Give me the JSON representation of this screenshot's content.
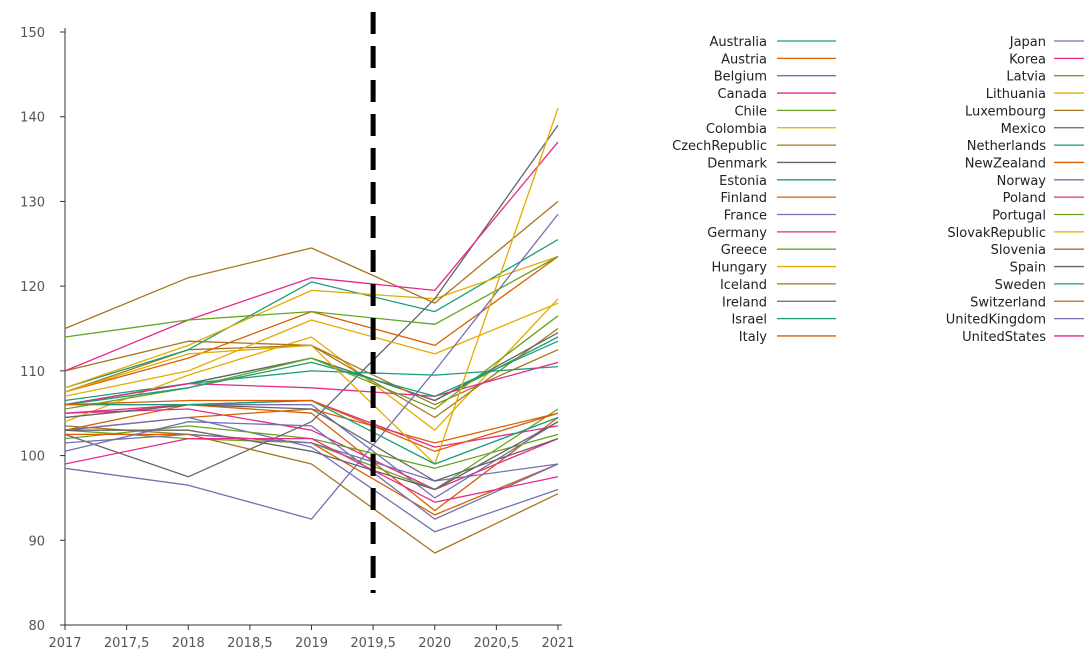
{
  "chart_data": {
    "type": "line",
    "title": "",
    "xlabel": "",
    "ylabel": "",
    "xlim": [
      2017,
      2021
    ],
    "ylim": [
      80,
      150
    ],
    "x_ticks": [
      "2017",
      "2017,5",
      "2018",
      "2018,5",
      "2019",
      "2019,5",
      "2020",
      "2020,5",
      "2021"
    ],
    "y_ticks": [
      "80",
      "90",
      "100",
      "110",
      "120",
      "130",
      "140",
      "150"
    ],
    "grid": false,
    "legend_position": "right",
    "vertical_marker": {
      "x": 2019.5,
      "style": "dashed",
      "color": "#000000"
    },
    "x": [
      2017,
      2018,
      2019,
      2020,
      2021
    ],
    "series": [
      {
        "name": "Australia",
        "color": "#1b9e77",
        "values": [
          106.5,
          108.5,
          111.5,
          106.5,
          114.0
        ]
      },
      {
        "name": "Austria",
        "color": "#d95f02",
        "values": [
          103.0,
          106.0,
          105.0,
          93.5,
          104.5
        ]
      },
      {
        "name": "Belgium",
        "color": "#7570b3",
        "values": [
          104.5,
          106.0,
          106.0,
          95.0,
          104.0
        ]
      },
      {
        "name": "Canada",
        "color": "#e7298a",
        "values": [
          105.0,
          105.5,
          103.0,
          96.0,
          102.0
        ]
      },
      {
        "name": "Chile",
        "color": "#66a61e",
        "values": [
          103.0,
          102.0,
          101.5,
          96.0,
          105.5
        ]
      },
      {
        "name": "Colombia",
        "color": "#e6ab02",
        "values": [
          104.0,
          109.5,
          114.0,
          103.0,
          118.5
        ]
      },
      {
        "name": "CzechRepublic",
        "color": "#a6761d",
        "values": [
          107.5,
          112.5,
          113.0,
          104.5,
          115.0
        ]
      },
      {
        "name": "Denmark",
        "color": "#666666",
        "values": [
          106.0,
          108.5,
          111.5,
          106.5,
          114.5
        ]
      },
      {
        "name": "Estonia",
        "color": "#1b9e77",
        "values": [
          108.0,
          112.5,
          120.5,
          117.0,
          125.5
        ]
      },
      {
        "name": "Finland",
        "color": "#d95f02",
        "values": [
          103.0,
          104.5,
          105.5,
          101.5,
          105.0
        ]
      },
      {
        "name": "France",
        "color": "#7570b3",
        "values": [
          103.0,
          104.5,
          101.0,
          91.0,
          96.0
        ]
      },
      {
        "name": "Germany",
        "color": "#e7298a",
        "values": [
          105.0,
          106.0,
          106.5,
          101.0,
          103.5
        ]
      },
      {
        "name": "Greece",
        "color": "#66a61e",
        "values": [
          102.0,
          103.5,
          102.0,
          98.5,
          102.5
        ]
      },
      {
        "name": "Hungary",
        "color": "#e6ab02",
        "values": [
          108.0,
          113.0,
          119.5,
          118.5,
          123.5
        ]
      },
      {
        "name": "Iceland",
        "color": "#a6761d",
        "values": [
          110.0,
          113.5,
          113.0,
          106.0,
          112.5
        ]
      },
      {
        "name": "Ireland",
        "color": "#666666",
        "values": [
          102.5,
          97.5,
          104.0,
          118.5,
          139.0
        ]
      },
      {
        "name": "Israel",
        "color": "#1b9e77",
        "values": [
          106.0,
          108.5,
          110.0,
          109.5,
          110.5
        ]
      },
      {
        "name": "Italy",
        "color": "#d95f02",
        "values": [
          102.5,
          102.5,
          101.5,
          93.0,
          99.0
        ]
      },
      {
        "name": "Japan",
        "color": "#7570b3",
        "values": [
          101.5,
          102.5,
          101.5,
          97.0,
          99.0
        ]
      },
      {
        "name": "Korea",
        "color": "#e7298a",
        "values": [
          106.0,
          108.5,
          108.0,
          107.0,
          111.0
        ]
      },
      {
        "name": "Latvia",
        "color": "#66a61e",
        "values": [
          105.5,
          108.0,
          111.5,
          105.5,
          116.5
        ]
      },
      {
        "name": "Lithuania",
        "color": "#e6ab02",
        "values": [
          107.0,
          110.0,
          116.0,
          112.0,
          118.0
        ]
      },
      {
        "name": "Luxembourg",
        "color": "#a6761d",
        "values": [
          115.0,
          121.0,
          124.5,
          118.0,
          130.0
        ]
      },
      {
        "name": "Mexico",
        "color": "#666666",
        "values": [
          104.5,
          106.0,
          105.5,
          97.0,
          102.0
        ]
      },
      {
        "name": "Netherlands",
        "color": "#1b9e77",
        "values": [
          106.0,
          108.0,
          111.0,
          107.0,
          113.5
        ]
      },
      {
        "name": "NewZealand",
        "color": "#d95f02",
        "values": [
          107.5,
          111.5,
          117.0,
          113.0,
          123.5
        ]
      },
      {
        "name": "Norway",
        "color": "#7570b3",
        "values": [
          98.5,
          96.5,
          92.5,
          110.0,
          128.5
        ]
      },
      {
        "name": "Poland",
        "color": "#e7298a",
        "values": [
          110.0,
          116.0,
          121.0,
          119.5,
          137.0
        ]
      },
      {
        "name": "Portugal",
        "color": "#66a61e",
        "values": [
          114.0,
          116.0,
          117.0,
          115.5,
          123.5
        ]
      },
      {
        "name": "SlovakRepublic",
        "color": "#e6ab02",
        "values": [
          107.5,
          112.0,
          113.0,
          99.0,
          141.0
        ]
      },
      {
        "name": "Slovenia",
        "color": "#a6761d",
        "values": [
          103.5,
          102.5,
          99.0,
          88.5,
          95.5
        ]
      },
      {
        "name": "Spain",
        "color": "#666666",
        "values": [
          103.0,
          103.0,
          100.5,
          96.0,
          104.0
        ]
      },
      {
        "name": "Sweden",
        "color": "#1b9e77",
        "values": [
          106.0,
          106.0,
          106.5,
          99.0,
          104.5
        ]
      },
      {
        "name": "Switzerland",
        "color": "#d95f02",
        "values": [
          106.0,
          106.5,
          106.5,
          100.5,
          105.0
        ]
      },
      {
        "name": "UnitedKingdom",
        "color": "#7570b3",
        "values": [
          100.5,
          104.0,
          103.5,
          92.5,
          99.0
        ]
      },
      {
        "name": "UnitedStates",
        "color": "#e7298a",
        "values": [
          99.0,
          102.0,
          102.0,
          94.5,
          97.5
        ]
      }
    ]
  }
}
